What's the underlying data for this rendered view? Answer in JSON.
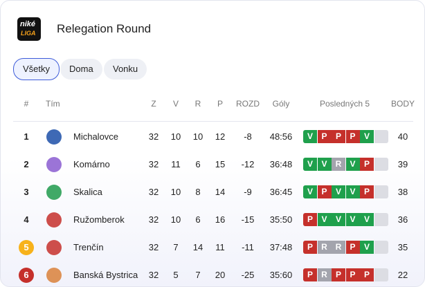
{
  "header": {
    "logo": {
      "line1": "niké",
      "line2": "LIGA"
    },
    "title": "Relegation Round"
  },
  "tabs": [
    "Všetky",
    "Doma",
    "Vonku"
  ],
  "table": {
    "columns": [
      "#",
      "Tím",
      "Z",
      "V",
      "R",
      "P",
      "ROZD",
      "Góly",
      "Posledných 5",
      "BODY"
    ],
    "rows": [
      {
        "rank": 1,
        "team": "Michalovce",
        "z": 32,
        "v": 10,
        "r": 10,
        "p": 12,
        "rozd": -8,
        "goly": "48:56",
        "last5": [
          "V",
          "P",
          "P",
          "P",
          "V"
        ],
        "body": 40
      },
      {
        "rank": 2,
        "team": "Komárno",
        "z": 32,
        "v": 11,
        "r": 6,
        "p": 15,
        "rozd": -12,
        "goly": "36:48",
        "last5": [
          "V",
          "V",
          "R",
          "V",
          "P"
        ],
        "body": 39
      },
      {
        "rank": 3,
        "team": "Skalica",
        "z": 32,
        "v": 10,
        "r": 8,
        "p": 14,
        "rozd": -9,
        "goly": "36:45",
        "last5": [
          "V",
          "P",
          "V",
          "V",
          "P"
        ],
        "body": 38
      },
      {
        "rank": 4,
        "team": "Ružomberok",
        "z": 32,
        "v": 10,
        "r": 6,
        "p": 16,
        "rozd": -15,
        "goly": "35:50",
        "last5": [
          "P",
          "V",
          "V",
          "V",
          "V"
        ],
        "body": 36
      },
      {
        "rank": 5,
        "team": "Trenčín",
        "z": 32,
        "v": 7,
        "r": 14,
        "p": 11,
        "rozd": -11,
        "goly": "37:48",
        "last5": [
          "P",
          "R",
          "R",
          "P",
          "V"
        ],
        "body": 35
      },
      {
        "rank": 6,
        "team": "Banská Bystrica",
        "z": 32,
        "v": 5,
        "r": 7,
        "p": 20,
        "rozd": -25,
        "goly": "35:60",
        "last5": [
          "P",
          "R",
          "P",
          "P",
          "P"
        ],
        "body": 22
      }
    ]
  }
}
